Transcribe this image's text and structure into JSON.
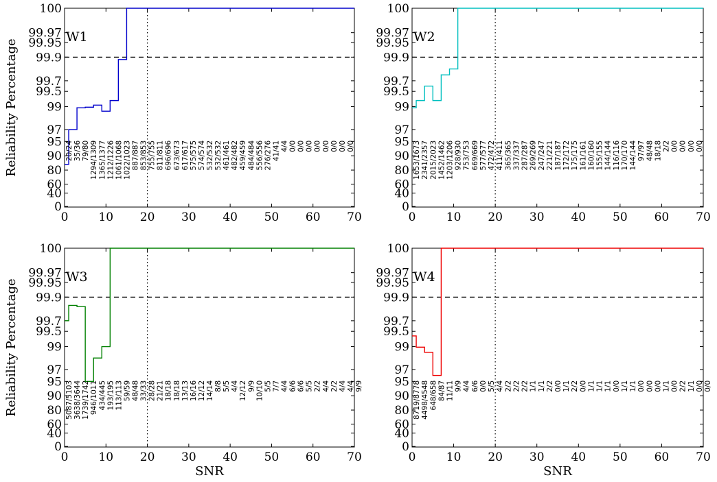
{
  "chart_data": [
    {
      "type": "line",
      "title": "W1",
      "color": "#0000cc",
      "xlabel": "",
      "ylabel": "Reliability Percentage",
      "xlim": [
        0,
        70
      ],
      "yscale": "reliability (stretched near 100)",
      "xticks": [
        "0",
        "10",
        "20",
        "30",
        "40",
        "50",
        "60",
        "70"
      ],
      "yticks": [
        "0",
        "40",
        "60",
        "80",
        "90",
        "95",
        "97",
        "99",
        "99.5",
        "99.7",
        "99.9",
        "99.95",
        "99.97",
        "100"
      ],
      "reference_lines": {
        "horizontal_dashed_y": 99.9,
        "vertical_dotted_x": 20
      },
      "x": [
        0,
        1,
        3,
        5,
        7,
        9,
        11,
        13,
        15,
        70
      ],
      "y": [
        84,
        97,
        98.9,
        98.95,
        99.05,
        98.6,
        99.2,
        99.88,
        100,
        100
      ],
      "labels": [
        "20/24",
        "35/36",
        "79/80",
        "1294/1309",
        "1365/1377",
        "1212/1226",
        "1061/1068",
        "1022/1023",
        "887/887",
        "853/853",
        "755/755",
        "811/811",
        "696/696",
        "673/673",
        "617/617",
        "575/575",
        "574/574",
        "532/532",
        "532/532",
        "461/461",
        "482/482",
        "459/459",
        "484/484",
        "556/556",
        "276/276",
        "41/41",
        "4/4",
        "0/0",
        "0/0",
        "0/0",
        "0/0",
        "0/0",
        "0/0",
        "0/0",
        "0/0"
      ]
    },
    {
      "type": "line",
      "title": "W2",
      "color": "#00bfbf",
      "xlabel": "",
      "ylabel": "",
      "xlim": [
        0,
        70
      ],
      "xticks": [
        "0",
        "10",
        "20",
        "30",
        "40",
        "50",
        "60",
        "70"
      ],
      "yticks": [
        "0",
        "40",
        "60",
        "80",
        "90",
        "95",
        "97",
        "99",
        "99.5",
        "99.7",
        "99.9",
        "99.95",
        "99.97",
        "100"
      ],
      "reference_lines": {
        "horizontal_dashed_y": 99.9,
        "vertical_dotted_x": 20
      },
      "x": [
        0,
        1,
        3,
        5,
        7,
        9,
        11,
        70
      ],
      "y": [
        98.9,
        99.2,
        99.6,
        99.2,
        99.75,
        99.8,
        100,
        100
      ],
      "labels": [
        "1653/1673",
        "2341/2357",
        "2015/2023",
        "1452/1462",
        "1203/1206",
        "928/930",
        "753/753",
        "669/669",
        "577/577",
        "472/472",
        "411/411",
        "365/365",
        "337/337",
        "287/287",
        "269/269",
        "247/247",
        "221/221",
        "187/187",
        "172/172",
        "175/175",
        "161/161",
        "160/160",
        "155/155",
        "144/144",
        "116/116",
        "170/170",
        "144/144",
        "97/97",
        "48/48",
        "18/18",
        "2/2",
        "0/0",
        "0/0",
        "0/0",
        "0/0"
      ]
    },
    {
      "type": "line",
      "title": "W3",
      "color": "#008000",
      "xlabel": "SNR",
      "ylabel": "Reliability Percentage",
      "xlim": [
        0,
        70
      ],
      "xticks": [
        "0",
        "10",
        "20",
        "30",
        "40",
        "50",
        "60",
        "70"
      ],
      "yticks": [
        "0",
        "40",
        "60",
        "80",
        "90",
        "95",
        "97",
        "99",
        "99.5",
        "99.7",
        "99.9",
        "99.95",
        "99.97",
        "100"
      ],
      "reference_lines": {
        "horizontal_dashed_y": 99.9,
        "vertical_dotted_x": 20
      },
      "x": [
        0,
        1,
        3,
        5,
        7,
        9,
        11,
        70
      ],
      "y": [
        99.7,
        99.83,
        99.82,
        95,
        98,
        99,
        100,
        100
      ],
      "labels": [
        "5087/5103",
        "3638/3644",
        "1739/1742",
        "946/1011",
        "434/445",
        "193/195",
        "113/113",
        "59/59",
        "48/48",
        "33/33",
        "28/28",
        "21/21",
        "18/18",
        "18/18",
        "13/13",
        "16/16",
        "12/12",
        "14/14",
        "8/8",
        "5/5",
        "4/4",
        "12/12",
        "9/9",
        "10/10",
        "5/5",
        "7/7",
        "4/4",
        "6/6",
        "6/6",
        "5/5",
        "2/2",
        "4/4",
        "2/2",
        "4/4",
        "4/4",
        "9/9"
      ]
    },
    {
      "type": "line",
      "title": "W4",
      "color": "#ee0000",
      "xlabel": "SNR",
      "ylabel": "",
      "xlim": [
        0,
        70
      ],
      "xticks": [
        "0",
        "10",
        "20",
        "30",
        "40",
        "50",
        "60",
        "70"
      ],
      "yticks": [
        "0",
        "40",
        "60",
        "80",
        "90",
        "95",
        "97",
        "99",
        "99.5",
        "99.7",
        "99.9",
        "99.95",
        "99.97",
        "100"
      ],
      "reference_lines": {
        "horizontal_dashed_y": 99.9,
        "vertical_dotted_x": 20
      },
      "x": [
        0,
        1,
        3,
        5,
        7,
        70
      ],
      "y": [
        99.35,
        98.95,
        98.5,
        96,
        100,
        100
      ],
      "labels": [
        "8719/8778",
        "4498/4548",
        "648/658",
        "84/87",
        "11/11",
        "9/9",
        "4/4",
        "6/6",
        "0/0",
        "5/5",
        "4/4",
        "2/2",
        "2/2",
        "2/2",
        "1/1",
        "1/1",
        "2/2",
        "0/0",
        "1/1",
        "2/2",
        "0/0",
        "1/1",
        "1/1",
        "1/1",
        "0/0",
        "1/1",
        "1/1",
        "0/0",
        "0/0",
        "0/0",
        "1/1",
        "0/0",
        "2/2",
        "1/1",
        "0/0",
        "0/0"
      ]
    }
  ]
}
